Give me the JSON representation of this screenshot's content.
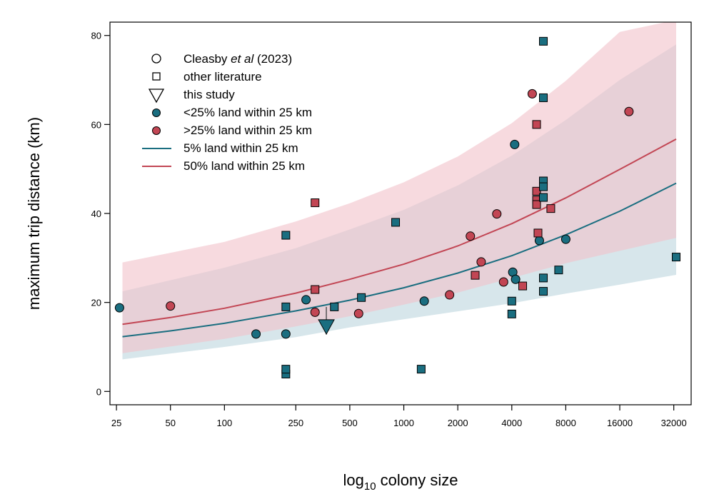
{
  "chart_data": {
    "type": "scatter",
    "title": "",
    "xlabel": {
      "base": "log",
      "subscript": "10",
      "rest": " colony size"
    },
    "ylabel": "maximum trip distance (km)",
    "x_scale": "log2",
    "xlim": [
      23,
      40000
    ],
    "ylim": [
      -3,
      83
    ],
    "x_ticks": [
      25,
      50,
      100,
      250,
      500,
      1000,
      2000,
      4000,
      8000,
      16000,
      32000
    ],
    "x_tick_labels": [
      "25",
      "50",
      "100",
      "250",
      "500",
      "1000",
      "2000",
      "4000",
      "8000",
      "16000",
      "32000"
    ],
    "y_ticks": [
      0,
      20,
      40,
      60,
      80
    ],
    "y_tick_labels": [
      "0",
      "20",
      "40",
      "60",
      "80"
    ],
    "colors": {
      "teal": "#1a6e80",
      "red": "#c24654",
      "teal_band": "#bcd6dd",
      "red_band": "#f2c2c9"
    },
    "legend": {
      "position": "top-left",
      "entries": [
        {
          "label_parts": [
            "Cleasby ",
            "et al",
            " (2023)"
          ],
          "symbol": "open-circle"
        },
        {
          "label": "other literature",
          "symbol": "open-square"
        },
        {
          "label": "this study",
          "symbol": "open-triangle-down"
        },
        {
          "label": "<25% land within 25 km",
          "symbol": "teal-circle"
        },
        {
          "label": ">25% land within 25 km",
          "symbol": "red-circle"
        },
        {
          "label": "5% land within 25 km",
          "symbol": "teal-line"
        },
        {
          "label": "50% land within 25 km",
          "symbol": "red-line"
        }
      ]
    },
    "bands": [
      {
        "name": "5% land CI",
        "color": "teal",
        "x": [
          27,
          100,
          250,
          500,
          1000,
          2000,
          4000,
          8000,
          16000,
          33000
        ],
        "lower": [
          7.2,
          10,
          12.2,
          14.4,
          16.2,
          18.0,
          19.8,
          22.0,
          24.0,
          26.2
        ],
        "upper": [
          22.5,
          27.8,
          32.2,
          36.4,
          40.8,
          46.3,
          53.0,
          61.0,
          70.0,
          78.0
        ]
      },
      {
        "name": "50% land CI",
        "color": "red",
        "x": [
          27,
          100,
          250,
          500,
          1000,
          2000,
          4000,
          8000,
          16000,
          33000
        ],
        "lower": [
          8.6,
          11.8,
          14.6,
          16.9,
          19.5,
          22.2,
          25.5,
          28.8,
          31.6,
          34.5
        ],
        "upper": [
          29.0,
          33.6,
          38.2,
          42.3,
          47.0,
          52.8,
          60.3,
          69.8,
          80.8,
          83.5
        ]
      }
    ],
    "series": [
      {
        "name": "5% land within 25 km",
        "color": "teal",
        "line": true,
        "x": [
          27,
          50,
          100,
          250,
          500,
          1000,
          2000,
          4000,
          8000,
          16000,
          33000
        ],
        "y": [
          12.3,
          13.6,
          15.3,
          18.1,
          20.5,
          23.3,
          26.6,
          30.5,
          35.2,
          40.5,
          46.8
        ]
      },
      {
        "name": "50% land within 25 km",
        "color": "red",
        "line": true,
        "x": [
          27,
          50,
          100,
          250,
          500,
          1000,
          2000,
          4000,
          8000,
          16000,
          33000
        ],
        "y": [
          15.1,
          16.6,
          18.7,
          22.1,
          25.2,
          28.6,
          32.7,
          37.7,
          43.5,
          49.9,
          56.7
        ]
      }
    ],
    "points": [
      {
        "x": 26,
        "y": 18.8,
        "shape": "circle",
        "color": "teal"
      },
      {
        "x": 50,
        "y": 19.2,
        "shape": "circle",
        "color": "red"
      },
      {
        "x": 150,
        "y": 12.9,
        "shape": "circle",
        "color": "teal"
      },
      {
        "x": 220,
        "y": 12.9,
        "shape": "circle",
        "color": "teal"
      },
      {
        "x": 285,
        "y": 20.6,
        "shape": "circle",
        "color": "teal"
      },
      {
        "x": 320,
        "y": 17.8,
        "shape": "circle",
        "color": "red"
      },
      {
        "x": 560,
        "y": 17.5,
        "shape": "circle",
        "color": "red"
      },
      {
        "x": 1300,
        "y": 20.3,
        "shape": "circle",
        "color": "teal"
      },
      {
        "x": 1800,
        "y": 21.7,
        "shape": "circle",
        "color": "red"
      },
      {
        "x": 2350,
        "y": 34.9,
        "shape": "circle",
        "color": "red"
      },
      {
        "x": 2700,
        "y": 29.1,
        "shape": "circle",
        "color": "red"
      },
      {
        "x": 3300,
        "y": 39.9,
        "shape": "circle",
        "color": "red"
      },
      {
        "x": 3600,
        "y": 24.6,
        "shape": "circle",
        "color": "red"
      },
      {
        "x": 4050,
        "y": 26.8,
        "shape": "circle",
        "color": "teal"
      },
      {
        "x": 4200,
        "y": 25.2,
        "shape": "circle",
        "color": "teal"
      },
      {
        "x": 4150,
        "y": 55.5,
        "shape": "circle",
        "color": "teal"
      },
      {
        "x": 5200,
        "y": 66.9,
        "shape": "circle",
        "color": "red"
      },
      {
        "x": 5700,
        "y": 33.9,
        "shape": "circle",
        "color": "teal"
      },
      {
        "x": 8000,
        "y": 34.2,
        "shape": "circle",
        "color": "teal"
      },
      {
        "x": 18000,
        "y": 62.9,
        "shape": "circle",
        "color": "red"
      },
      {
        "x": 220,
        "y": 3.9,
        "shape": "square",
        "color": "teal"
      },
      {
        "x": 220,
        "y": 5.0,
        "shape": "square",
        "color": "teal"
      },
      {
        "x": 220,
        "y": 19.0,
        "shape": "square",
        "color": "teal"
      },
      {
        "x": 220,
        "y": 35.1,
        "shape": "square",
        "color": "teal"
      },
      {
        "x": 320,
        "y": 22.9,
        "shape": "square",
        "color": "red"
      },
      {
        "x": 320,
        "y": 42.4,
        "shape": "square",
        "color": "red"
      },
      {
        "x": 410,
        "y": 19.0,
        "shape": "square",
        "color": "teal"
      },
      {
        "x": 580,
        "y": 21.1,
        "shape": "square",
        "color": "teal"
      },
      {
        "x": 900,
        "y": 38.0,
        "shape": "square",
        "color": "teal"
      },
      {
        "x": 1250,
        "y": 5.0,
        "shape": "square",
        "color": "teal"
      },
      {
        "x": 2500,
        "y": 26.1,
        "shape": "square",
        "color": "red"
      },
      {
        "x": 4000,
        "y": 17.4,
        "shape": "square",
        "color": "teal"
      },
      {
        "x": 4000,
        "y": 20.3,
        "shape": "square",
        "color": "teal"
      },
      {
        "x": 4600,
        "y": 23.7,
        "shape": "square",
        "color": "red"
      },
      {
        "x": 5500,
        "y": 60.0,
        "shape": "square",
        "color": "red"
      },
      {
        "x": 5500,
        "y": 45.0,
        "shape": "square",
        "color": "red"
      },
      {
        "x": 5500,
        "y": 43.0,
        "shape": "square",
        "color": "red"
      },
      {
        "x": 5500,
        "y": 42.0,
        "shape": "square",
        "color": "red"
      },
      {
        "x": 5600,
        "y": 35.6,
        "shape": "square",
        "color": "red"
      },
      {
        "x": 6000,
        "y": 78.7,
        "shape": "square",
        "color": "teal"
      },
      {
        "x": 6000,
        "y": 66.0,
        "shape": "square",
        "color": "teal"
      },
      {
        "x": 6000,
        "y": 47.3,
        "shape": "square",
        "color": "teal"
      },
      {
        "x": 6000,
        "y": 46.0,
        "shape": "square",
        "color": "teal"
      },
      {
        "x": 6000,
        "y": 43.6,
        "shape": "square",
        "color": "teal"
      },
      {
        "x": 6000,
        "y": 25.5,
        "shape": "square",
        "color": "teal"
      },
      {
        "x": 6000,
        "y": 22.5,
        "shape": "square",
        "color": "teal"
      },
      {
        "x": 6600,
        "y": 41.1,
        "shape": "square",
        "color": "red"
      },
      {
        "x": 7300,
        "y": 27.3,
        "shape": "square",
        "color": "teal"
      },
      {
        "x": 33000,
        "y": 30.2,
        "shape": "square",
        "color": "teal"
      },
      {
        "x": 370,
        "y": 14.5,
        "shape": "triangle",
        "color": "teal"
      }
    ],
    "annotations": [
      {
        "type": "vertical-segment",
        "x": 370,
        "y_from": 19.0,
        "y_to": 12.8,
        "color": "#555555"
      }
    ]
  }
}
